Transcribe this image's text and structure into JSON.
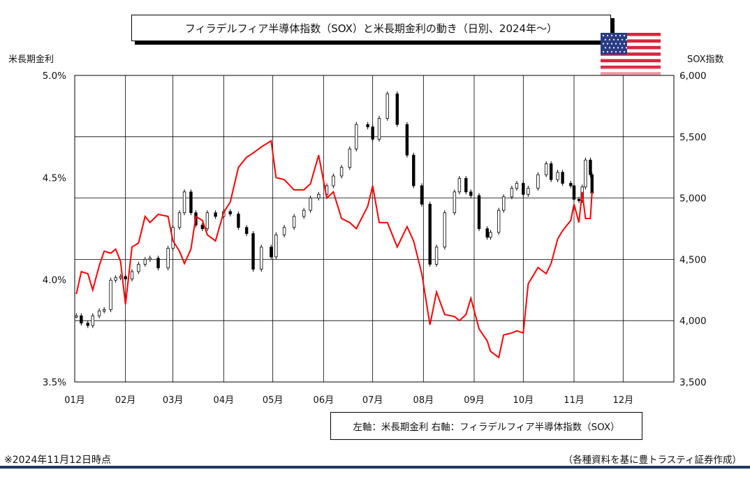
{
  "title": "フィラデルフィア半導体指数（SOX）と米長期金利の動き（日別、2024年～）",
  "left_axis_name": "米長期金利",
  "right_axis_name": "SOX指数",
  "legend_text": "左軸：米長期金利 右軸：フィラデルフィア半導体指数（SOX）",
  "note_left": "※2024年11月12日時点",
  "note_right": "（各種資料を基に豊トラスティ証券作成）",
  "flag_icon": "us-flag-icon",
  "colors": {
    "yield_line": "#ff0000",
    "candle": "#000000",
    "grid": "#000000",
    "footer": "#1f3864"
  },
  "chart_data": {
    "type": "line",
    "x_tick_labels": [
      "01月",
      "02月",
      "03月",
      "04月",
      "05月",
      "06月",
      "07月",
      "08月",
      "09月",
      "10月",
      "11月",
      "12月"
    ],
    "y_left": {
      "label": "米長期金利",
      "ylim": [
        3.5,
        5.0
      ],
      "tick_labels": [
        "3.5%",
        "4.0%",
        "4.5%",
        "5.0%"
      ],
      "ticks": [
        3.5,
        4.0,
        4.5,
        5.0
      ]
    },
    "y_right": {
      "label": "SOX指数",
      "ylim": [
        3500,
        6000
      ],
      "tick_labels": [
        "3,500",
        "4,000",
        "4,500",
        "5,000",
        "5,500",
        "6,000"
      ],
      "ticks": [
        3500,
        4000,
        4500,
        5000,
        5500,
        6000
      ]
    },
    "grid": true,
    "series": [
      {
        "name": "米長期金利",
        "axis": "left",
        "style": "line",
        "points": [
          [
            "2024-01-02",
            3.93
          ],
          [
            "2024-01-05",
            4.04
          ],
          [
            "2024-01-09",
            4.03
          ],
          [
            "2024-01-12",
            3.95
          ],
          [
            "2024-01-16",
            4.07
          ],
          [
            "2024-01-19",
            4.14
          ],
          [
            "2024-01-23",
            4.13
          ],
          [
            "2024-01-26",
            4.15
          ],
          [
            "2024-01-29",
            4.09
          ],
          [
            "2024-02-01",
            3.88
          ],
          [
            "2024-02-05",
            4.16
          ],
          [
            "2024-02-09",
            4.18
          ],
          [
            "2024-02-13",
            4.31
          ],
          [
            "2024-02-16",
            4.28
          ],
          [
            "2024-02-21",
            4.32
          ],
          [
            "2024-02-27",
            4.31
          ],
          [
            "2024-03-01",
            4.19
          ],
          [
            "2024-03-05",
            4.14
          ],
          [
            "2024-03-08",
            4.08
          ],
          [
            "2024-03-12",
            4.15
          ],
          [
            "2024-03-15",
            4.31
          ],
          [
            "2024-03-19",
            4.29
          ],
          [
            "2024-03-22",
            4.22
          ],
          [
            "2024-03-27",
            4.19
          ],
          [
            "2024-04-01",
            4.33
          ],
          [
            "2024-04-05",
            4.38
          ],
          [
            "2024-04-10",
            4.55
          ],
          [
            "2024-04-15",
            4.6
          ],
          [
            "2024-04-19",
            4.62
          ],
          [
            "2024-04-24",
            4.65
          ],
          [
            "2024-04-30",
            4.68
          ],
          [
            "2024-05-03",
            4.5
          ],
          [
            "2024-05-08",
            4.49
          ],
          [
            "2024-05-14",
            4.44
          ],
          [
            "2024-05-20",
            4.44
          ],
          [
            "2024-05-24",
            4.47
          ],
          [
            "2024-05-29",
            4.61
          ],
          [
            "2024-06-03",
            4.4
          ],
          [
            "2024-06-07",
            4.43
          ],
          [
            "2024-06-12",
            4.3
          ],
          [
            "2024-06-17",
            4.28
          ],
          [
            "2024-06-21",
            4.25
          ],
          [
            "2024-06-28",
            4.36
          ],
          [
            "2024-07-01",
            4.46
          ],
          [
            "2024-07-05",
            4.28
          ],
          [
            "2024-07-10",
            4.28
          ],
          [
            "2024-07-16",
            4.16
          ],
          [
            "2024-07-22",
            4.26
          ],
          [
            "2024-07-26",
            4.19
          ],
          [
            "2024-07-31",
            4.03
          ],
          [
            "2024-08-05",
            3.78
          ],
          [
            "2024-08-09",
            3.94
          ],
          [
            "2024-08-14",
            3.83
          ],
          [
            "2024-08-20",
            3.82
          ],
          [
            "2024-08-23",
            3.8
          ],
          [
            "2024-08-27",
            3.83
          ],
          [
            "2024-08-30",
            3.91
          ],
          [
            "2024-09-04",
            3.76
          ],
          [
            "2024-09-09",
            3.7
          ],
          [
            "2024-09-11",
            3.65
          ],
          [
            "2024-09-16",
            3.62
          ],
          [
            "2024-09-19",
            3.73
          ],
          [
            "2024-09-24",
            3.74
          ],
          [
            "2024-09-27",
            3.75
          ],
          [
            "2024-10-01",
            3.74
          ],
          [
            "2024-10-04",
            3.98
          ],
          [
            "2024-10-10",
            4.06
          ],
          [
            "2024-10-15",
            4.03
          ],
          [
            "2024-10-18",
            4.08
          ],
          [
            "2024-10-22",
            4.2
          ],
          [
            "2024-10-25",
            4.24
          ],
          [
            "2024-10-30",
            4.29
          ],
          [
            "2024-11-01",
            4.37
          ],
          [
            "2024-11-04",
            4.28
          ],
          [
            "2024-11-06",
            4.43
          ],
          [
            "2024-11-08",
            4.3
          ],
          [
            "2024-11-11",
            4.3
          ],
          [
            "2024-11-12",
            4.43
          ]
        ]
      },
      {
        "name": "フィラデルフィア半導体指数（SOX）",
        "axis": "right",
        "style": "candlestick",
        "points": [
          [
            "2024-01-02",
            4040
          ],
          [
            "2024-01-05",
            3980
          ],
          [
            "2024-01-09",
            3960
          ],
          [
            "2024-01-12",
            4040
          ],
          [
            "2024-01-16",
            4080
          ],
          [
            "2024-01-19",
            4090
          ],
          [
            "2024-01-23",
            4330
          ],
          [
            "2024-01-26",
            4350
          ],
          [
            "2024-01-29",
            4360
          ],
          [
            "2024-02-01",
            4340
          ],
          [
            "2024-02-05",
            4400
          ],
          [
            "2024-02-09",
            4460
          ],
          [
            "2024-02-13",
            4500
          ],
          [
            "2024-02-16",
            4510
          ],
          [
            "2024-02-21",
            4430
          ],
          [
            "2024-02-27",
            4590
          ],
          [
            "2024-03-01",
            4760
          ],
          [
            "2024-03-05",
            4880
          ],
          [
            "2024-03-08",
            5050
          ],
          [
            "2024-03-12",
            4880
          ],
          [
            "2024-03-15",
            4780
          ],
          [
            "2024-03-19",
            4750
          ],
          [
            "2024-03-22",
            4880
          ],
          [
            "2024-03-27",
            4850
          ],
          [
            "2024-04-01",
            4890
          ],
          [
            "2024-04-05",
            4870
          ],
          [
            "2024-04-10",
            4760
          ],
          [
            "2024-04-15",
            4710
          ],
          [
            "2024-04-19",
            4420
          ],
          [
            "2024-04-24",
            4600
          ],
          [
            "2024-04-30",
            4520
          ],
          [
            "2024-05-03",
            4700
          ],
          [
            "2024-05-08",
            4760
          ],
          [
            "2024-05-14",
            4850
          ],
          [
            "2024-05-20",
            4900
          ],
          [
            "2024-05-24",
            5000
          ],
          [
            "2024-05-29",
            5030
          ],
          [
            "2024-06-03",
            5100
          ],
          [
            "2024-06-07",
            5180
          ],
          [
            "2024-06-12",
            5250
          ],
          [
            "2024-06-17",
            5400
          ],
          [
            "2024-06-21",
            5600
          ],
          [
            "2024-06-28",
            5580
          ],
          [
            "2024-07-01",
            5480
          ],
          [
            "2024-07-05",
            5650
          ],
          [
            "2024-07-10",
            5850
          ],
          [
            "2024-07-16",
            5600
          ],
          [
            "2024-07-22",
            5350
          ],
          [
            "2024-07-26",
            5100
          ],
          [
            "2024-07-31",
            4950
          ],
          [
            "2024-08-05",
            4460
          ],
          [
            "2024-08-09",
            4600
          ],
          [
            "2024-08-14",
            4880
          ],
          [
            "2024-08-20",
            5050
          ],
          [
            "2024-08-23",
            5160
          ],
          [
            "2024-08-27",
            5050
          ],
          [
            "2024-08-30",
            5020
          ],
          [
            "2024-09-04",
            4750
          ],
          [
            "2024-09-09",
            4680
          ],
          [
            "2024-09-11",
            4720
          ],
          [
            "2024-09-16",
            4900
          ],
          [
            "2024-09-19",
            5010
          ],
          [
            "2024-09-24",
            5080
          ],
          [
            "2024-09-27",
            5120
          ],
          [
            "2024-10-01",
            5030
          ],
          [
            "2024-10-04",
            5080
          ],
          [
            "2024-10-10",
            5190
          ],
          [
            "2024-10-15",
            5280
          ],
          [
            "2024-10-18",
            5150
          ],
          [
            "2024-10-22",
            5210
          ],
          [
            "2024-10-25",
            5120
          ],
          [
            "2024-10-30",
            5100
          ],
          [
            "2024-11-01",
            4990
          ],
          [
            "2024-11-04",
            4980
          ],
          [
            "2024-11-06",
            5090
          ],
          [
            "2024-11-08",
            5310
          ],
          [
            "2024-11-11",
            5190
          ],
          [
            "2024-11-12",
            5040
          ]
        ]
      }
    ]
  }
}
